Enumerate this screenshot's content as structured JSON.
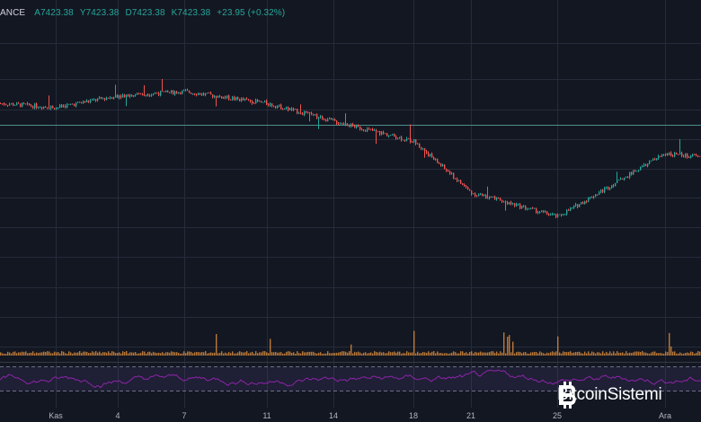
{
  "header": {
    "symbol": "ANCE",
    "open": "A7423.38",
    "high": "Y7423.38",
    "low": "D7423.38",
    "close": "K7423.38",
    "change": "+23.95 (+0.32%)"
  },
  "x_axis": {
    "labels": [
      "Kas",
      "4",
      "7",
      "11",
      "14",
      "18",
      "21",
      "25",
      "Ara"
    ]
  },
  "watermark": {
    "text": "BitcoinSistemi",
    "icon": "bitcoin-symbol-icon"
  },
  "colors": {
    "background": "#131722",
    "grid": "#262b3a",
    "up": "#26a69a",
    "down": "#ef5350",
    "price_line": "#4a8f8a",
    "volume": "#d8893b",
    "rsi": "#8e24aa"
  },
  "chart_data": {
    "type": "line",
    "x": [
      "Kas",
      "4",
      "7",
      "11",
      "14",
      "18",
      "21",
      "25",
      "Ara"
    ],
    "series": [
      {
        "values": [
          9150,
          9210,
          9230,
          9170,
          9080,
          8980,
          8720,
          8600,
          8920
        ]
      }
    ],
    "grid": true
  }
}
